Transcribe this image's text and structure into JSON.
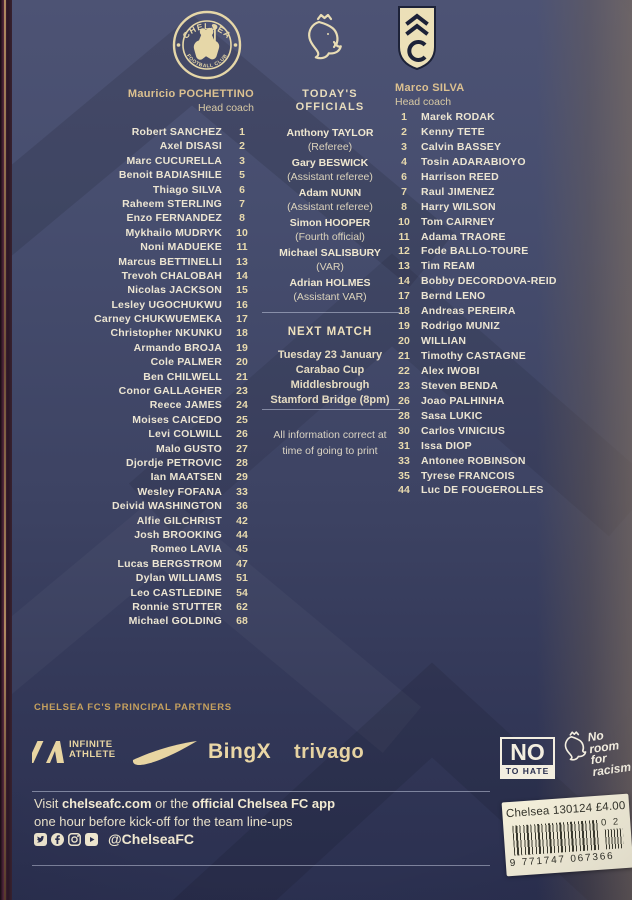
{
  "colors": {
    "accent_gold": "#d9bf8e",
    "cream_text": "#ece5d2",
    "page_navy": "#3e4463",
    "label_bg": "#f3eed9"
  },
  "chelsea": {
    "badge_text_top": "CHELSEA",
    "badge_text_bottom": "FOOTBALL CLUB",
    "coach_name": "Mauricio POCHETTINO",
    "coach_title": "Head coach",
    "players": [
      {
        "name": "Robert SANCHEZ",
        "number": "1"
      },
      {
        "name": "Axel DISASI",
        "number": "2"
      },
      {
        "name": "Marc CUCURELLA",
        "number": "3"
      },
      {
        "name": "Benoit BADIASHILE",
        "number": "5"
      },
      {
        "name": "Thiago SILVA",
        "number": "6"
      },
      {
        "name": "Raheem STERLING",
        "number": "7"
      },
      {
        "name": "Enzo FERNANDEZ",
        "number": "8"
      },
      {
        "name": "Mykhailo MUDRYK",
        "number": "10"
      },
      {
        "name": "Noni MADUEKE",
        "number": "11"
      },
      {
        "name": "Marcus BETTINELLI",
        "number": "13"
      },
      {
        "name": "Trevoh CHALOBAH",
        "number": "14"
      },
      {
        "name": "Nicolas JACKSON",
        "number": "15"
      },
      {
        "name": "Lesley UGOCHUKWU",
        "number": "16"
      },
      {
        "name": "Carney CHUKWUEMEKA",
        "number": "17"
      },
      {
        "name": "Christopher NKUNKU",
        "number": "18"
      },
      {
        "name": "Armando BROJA",
        "number": "19"
      },
      {
        "name": "Cole PALMER",
        "number": "20"
      },
      {
        "name": "Ben CHILWELL",
        "number": "21"
      },
      {
        "name": "Conor GALLAGHER",
        "number": "23"
      },
      {
        "name": "Reece JAMES",
        "number": "24"
      },
      {
        "name": "Moises CAICEDO",
        "number": "25"
      },
      {
        "name": "Levi COLWILL",
        "number": "26"
      },
      {
        "name": "Malo GUSTO",
        "number": "27"
      },
      {
        "name": "Djordje PETROVIC",
        "number": "28"
      },
      {
        "name": "Ian MAATSEN",
        "number": "29"
      },
      {
        "name": "Wesley FOFANA",
        "number": "33"
      },
      {
        "name": "Deivid WASHINGTON",
        "number": "36"
      },
      {
        "name": "Alfie GILCHRIST",
        "number": "42"
      },
      {
        "name": "Josh BROOKING",
        "number": "44"
      },
      {
        "name": "Romeo LAVIA",
        "number": "45"
      },
      {
        "name": "Lucas BERGSTROM",
        "number": "47"
      },
      {
        "name": "Dylan WILLIAMS",
        "number": "51"
      },
      {
        "name": "Leo CASTLEDINE",
        "number": "54"
      },
      {
        "name": "Ronnie STUTTER",
        "number": "62"
      },
      {
        "name": "Michael GOLDING",
        "number": "68"
      }
    ]
  },
  "officials": {
    "title_lines": [
      "TODAY'S",
      "OFFICIALS"
    ],
    "list": [
      {
        "name": "Anthony TAYLOR",
        "role": "(Referee)"
      },
      {
        "name": "Gary BESWICK",
        "role": "(Assistant referee)"
      },
      {
        "name": "Adam NUNN",
        "role": "(Assistant referee)"
      },
      {
        "name": "Simon HOOPER",
        "role": "(Fourth official)"
      },
      {
        "name": "Michael SALISBURY",
        "role": "(VAR)"
      },
      {
        "name": "Adrian HOLMES",
        "role": "(Assistant VAR)"
      }
    ]
  },
  "next_match": {
    "title": "NEXT MATCH",
    "lines": [
      "Tuesday 23 January",
      "Carabao Cup",
      "Middlesbrough",
      "Stamford Bridge (8pm)"
    ]
  },
  "disclaimer": [
    "All information correct at",
    "time of going to print"
  ],
  "fulham": {
    "coach_name": "Marco SILVA",
    "coach_title": "Head coach",
    "players": [
      {
        "name": "Marek RODAK",
        "number": "1"
      },
      {
        "name": "Kenny TETE",
        "number": "2"
      },
      {
        "name": "Calvin BASSEY",
        "number": "3"
      },
      {
        "name": "Tosin ADARABIOYO",
        "number": "4"
      },
      {
        "name": "Harrison REED",
        "number": "6"
      },
      {
        "name": "Raul JIMENEZ",
        "number": "7"
      },
      {
        "name": "Harry WILSON",
        "number": "8"
      },
      {
        "name": "Tom CAIRNEY",
        "number": "10"
      },
      {
        "name": "Adama TRAORE",
        "number": "11"
      },
      {
        "name": "Fode BALLO-TOURE",
        "number": "12"
      },
      {
        "name": "Tim REAM",
        "number": "13"
      },
      {
        "name": "Bobby DECORDOVA-REID",
        "number": "14"
      },
      {
        "name": "Bernd LENO",
        "number": "17"
      },
      {
        "name": "Andreas PEREIRA",
        "number": "18"
      },
      {
        "name": "Rodrigo MUNIZ",
        "number": "19"
      },
      {
        "name": "WILLIAN",
        "number": "20"
      },
      {
        "name": "Timothy CASTAGNE",
        "number": "21"
      },
      {
        "name": "Alex IWOBI",
        "number": "22"
      },
      {
        "name": "Steven BENDA",
        "number": "23"
      },
      {
        "name": "Joao PALHINHA",
        "number": "26"
      },
      {
        "name": "Sasa LUKIC",
        "number": "28"
      },
      {
        "name": "Carlos VINICIUS",
        "number": "30"
      },
      {
        "name": "Issa DIOP",
        "number": "31"
      },
      {
        "name": "Antonee ROBINSON",
        "number": "33"
      },
      {
        "name": "Tyrese FRANCOIS",
        "number": "35"
      },
      {
        "name": "Luc DE FOUGEROLLES",
        "number": "44"
      }
    ]
  },
  "partners": {
    "heading": "CHELSEA FC'S PRINCIPAL PARTNERS",
    "infinite_line1": "INFINITE",
    "infinite_line2": "ATHLETE",
    "bingx": "BingX",
    "trivago": "trivago"
  },
  "footer": {
    "line1": [
      {
        "text": "Visit ",
        "bold": false
      },
      {
        "text": "chelseafc.com",
        "bold": true
      },
      {
        "text": " or the ",
        "bold": false
      },
      {
        "text": "official Chelsea FC app",
        "bold": true
      }
    ],
    "line2": "one hour before kick-off for the team line-ups",
    "handle": "@ChelseaFC"
  },
  "campaigns": {
    "no_to_hate": {
      "line1": "NO",
      "line2": "TO HATE"
    },
    "no_room_words": [
      "No",
      "room",
      "for",
      "racism"
    ]
  },
  "barcode": {
    "label": "Chelsea 130124 £4.00",
    "number": "9 771747 067366",
    "code": "0 2"
  }
}
